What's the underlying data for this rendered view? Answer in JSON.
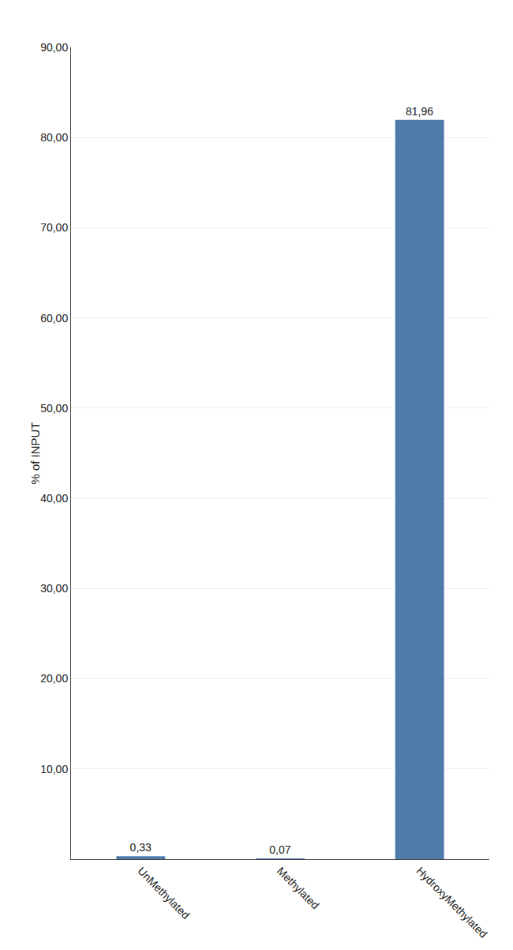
{
  "chart_data": {
    "type": "bar",
    "categories": [
      "UnMethylated",
      "Methylated",
      "HydroxyMethylated"
    ],
    "values": [
      0.33,
      0.07,
      81.96
    ],
    "value_labels": [
      "0,33",
      "0,07",
      "81,96"
    ],
    "data_labels": true,
    "color": "#4e7aaa",
    "ylabel": "% of INPUT",
    "ylim": [
      0,
      90
    ],
    "yticks": [
      {
        "value": 10.0,
        "label": "10,00"
      },
      {
        "value": 20.0,
        "label": "20,00"
      },
      {
        "value": 30.0,
        "label": "30,00"
      },
      {
        "value": 40.0,
        "label": "40,00"
      },
      {
        "value": 50.0,
        "label": "50,00"
      },
      {
        "value": 60.0,
        "label": "60,00"
      },
      {
        "value": 70.0,
        "label": "70,00"
      },
      {
        "value": 80.0,
        "label": "80,00"
      },
      {
        "value": 90.0,
        "label": "90,00"
      }
    ],
    "grid": true
  }
}
